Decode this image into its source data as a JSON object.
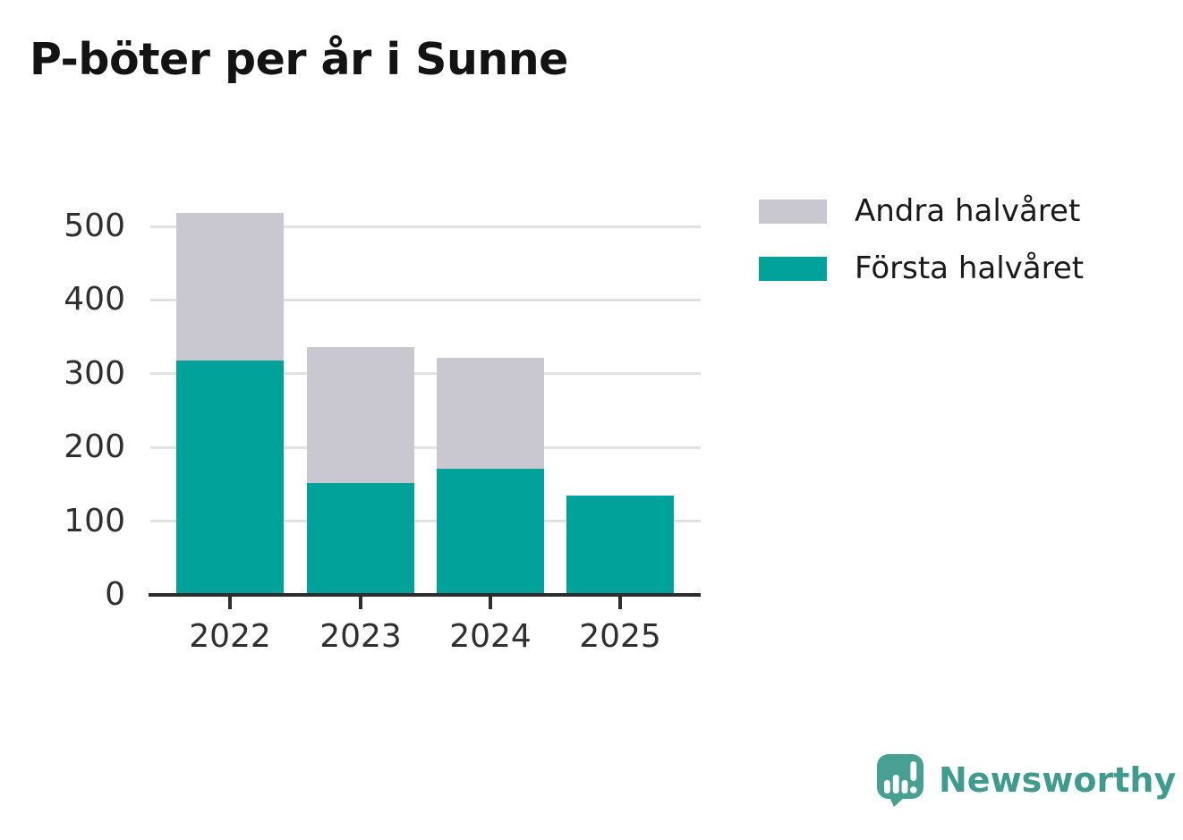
{
  "title": "P-böter per år i Sunne",
  "colors": {
    "forsta_halvaret": "#00a29a",
    "andra_halvaret": "#c9c7cf",
    "axis_line": "#2d2d2d",
    "gridline": "#e2e1e4",
    "text": "#1a1a1a",
    "axis_text": "#2f2f2f",
    "brand_teal": "#3f9b8d",
    "logo_bubble": "#47a092"
  },
  "legend": {
    "items": [
      {
        "label": "Andra halvåret",
        "color": "#c9c7cf"
      },
      {
        "label": "Första halvåret",
        "color": "#00a29a"
      }
    ]
  },
  "chart_data": {
    "type": "bar",
    "stacked": true,
    "title": "P-böter per år i Sunne",
    "categories": [
      "2022",
      "2023",
      "2024",
      "2025"
    ],
    "series": [
      {
        "name": "Första halvåret",
        "color": "#00a29a",
        "values": [
          318,
          152,
          171,
          135
        ]
      },
      {
        "name": "Andra halvåret",
        "color": "#c9c7cf",
        "values": [
          200,
          184,
          151,
          null
        ]
      }
    ],
    "totals": [
      518,
      336,
      322,
      135
    ],
    "xlabel": "",
    "ylabel": "",
    "ylim": [
      0,
      520
    ],
    "yticks": [
      0,
      100,
      200,
      300,
      400,
      500
    ],
    "grid": true,
    "grid_behind_bars": true,
    "legend_position": "top-right"
  },
  "branding": {
    "logo_text": "Newsworthy",
    "logo_icon": "newsworthy-speech-bubble-chart-icon"
  }
}
